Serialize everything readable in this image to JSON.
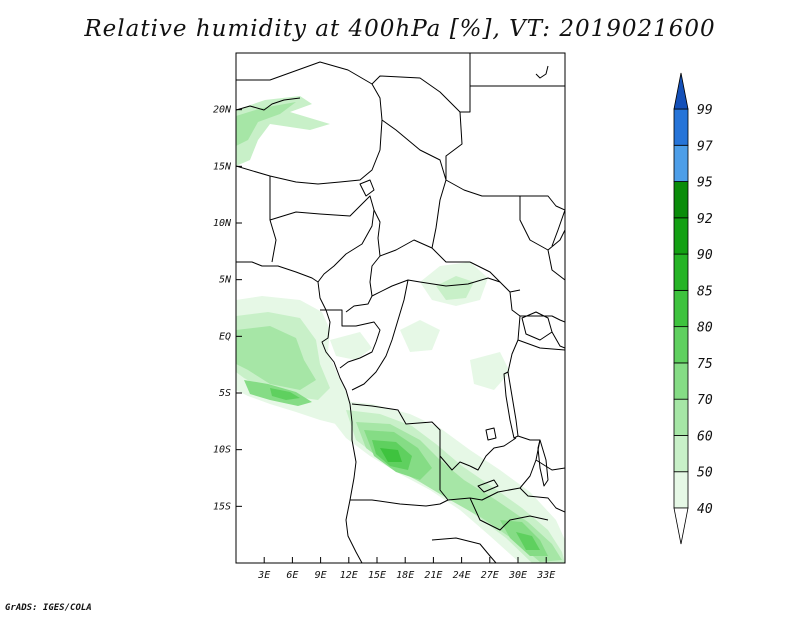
{
  "title": "Relative humidity at 400hPa [%], VT: 2019021600",
  "credit": "GrADS: IGES/COLA",
  "map": {
    "lon_range": [
      0,
      35
    ],
    "lat_range": [
      -20,
      25
    ],
    "lon_ticks": [
      "3E",
      "6E",
      "9E",
      "12E",
      "15E",
      "18E",
      "21E",
      "24E",
      "27E",
      "30E",
      "33E"
    ],
    "lat_ticks": [
      "20N",
      "15N",
      "10N",
      "5N",
      "EQ",
      "5S",
      "10S",
      "15S"
    ]
  },
  "colorbar": {
    "levels": [
      "40",
      "50",
      "60",
      "70",
      "75",
      "80",
      "85",
      "90",
      "92",
      "95",
      "97",
      "99"
    ],
    "colors": [
      "#ffffff",
      "#e6f8e6",
      "#c8f0c8",
      "#a6e6a6",
      "#85dc85",
      "#5fd05f",
      "#3ec33e",
      "#26b426",
      "#13a013",
      "#0a8c0a",
      "#4d9ee8",
      "#2674d8",
      "#1450b8"
    ]
  },
  "chart_data": {
    "type": "heatmap",
    "title": "Relative humidity at 400hPa [%], VT: 2019021600",
    "variable": "Relative humidity",
    "level": "400hPa",
    "units": "%",
    "valid_time": "2019021600",
    "x_ticks": [
      "3E",
      "6E",
      "9E",
      "12E",
      "15E",
      "18E",
      "21E",
      "24E",
      "27E",
      "30E",
      "33E"
    ],
    "y_ticks": [
      "20N",
      "15N",
      "10N",
      "5N",
      "EQ",
      "5S",
      "10S",
      "15S"
    ],
    "contour_levels": [
      40,
      50,
      60,
      70,
      75,
      80,
      85,
      90,
      92,
      95,
      97,
      99
    ],
    "humid_regions": [
      {
        "lon": [
          0,
          9
        ],
        "lat": [
          17,
          21
        ],
        "max_value": 60
      },
      {
        "lon": [
          0,
          10
        ],
        "lat": [
          -7,
          4
        ],
        "max_value": 75
      },
      {
        "lon": [
          2,
          9
        ],
        "lat": [
          -7,
          -4
        ],
        "max_value": 80
      },
      {
        "lon": [
          12,
          21
        ],
        "lat": [
          -14,
          -8
        ],
        "max_value": 85
      },
      {
        "lon": [
          20,
          35
        ],
        "lat": [
          -20,
          -12
        ],
        "max_value": 75
      },
      {
        "lon": [
          20,
          27
        ],
        "lat": [
          3,
          6
        ],
        "max_value": 60
      }
    ]
  }
}
